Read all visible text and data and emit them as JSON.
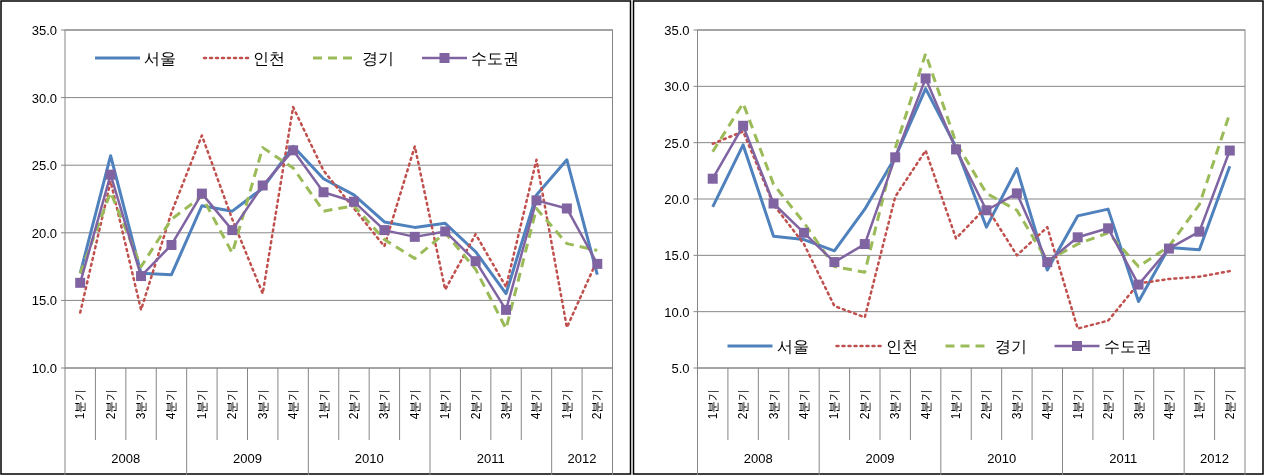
{
  "chart_data": [
    {
      "type": "line",
      "categories": [
        "1분기",
        "2분기",
        "3분기",
        "4분기",
        "1분기",
        "2분기",
        "3분기",
        "4분기",
        "1분기",
        "2분기",
        "3분기",
        "4분기",
        "1분기",
        "2분기",
        "3분기",
        "4분기",
        "1분기",
        "2분기"
      ],
      "annotations": [
        "2008",
        "2009",
        "2010",
        "2011",
        "2012"
      ],
      "ylim": [
        10,
        35
      ],
      "yticks": [
        {
          "value": 10,
          "label": "10.0"
        },
        {
          "value": 15,
          "label": "15.0"
        },
        {
          "value": 20,
          "label": "20.0"
        },
        {
          "value": 25,
          "label": "25.0"
        },
        {
          "value": 30,
          "label": "30.0"
        },
        {
          "value": 35,
          "label": "35.0"
        }
      ],
      "grid": "y",
      "legend": "top left",
      "series": [
        {
          "name": "서울",
          "color": "#4f81bd",
          "line_style": "solid",
          "marker": "none",
          "values": [
            17.0,
            25.7,
            17.0,
            16.9,
            22.0,
            21.6,
            23.3,
            26.4,
            24.0,
            22.8,
            20.8,
            20.4,
            20.7,
            18.6,
            15.5,
            22.8,
            25.4,
            16.9
          ]
        },
        {
          "name": "인천",
          "color": "#c0504d",
          "line_style": "dotted",
          "marker": "none",
          "values": [
            14.1,
            23.8,
            14.3,
            21.5,
            27.2,
            21.0,
            15.5,
            29.3,
            24.6,
            21.8,
            19.0,
            26.4,
            15.8,
            19.9,
            16.0,
            25.4,
            13.0,
            18.0
          ]
        },
        {
          "name": "경기",
          "color": "#9bbb59",
          "line_style": "dashed",
          "marker": "none",
          "values": [
            17.0,
            23.0,
            17.5,
            21.0,
            22.7,
            18.5,
            26.3,
            24.8,
            21.6,
            22.0,
            19.5,
            18.1,
            20.0,
            17.3,
            12.9,
            21.8,
            19.2,
            18.7
          ]
        },
        {
          "name": "수도권",
          "color": "#8064a2",
          "line_style": "solid",
          "marker": "square",
          "values": [
            16.3,
            24.3,
            16.8,
            19.1,
            22.9,
            20.2,
            23.5,
            26.1,
            23.0,
            22.3,
            20.2,
            19.7,
            20.1,
            17.9,
            14.3,
            22.4,
            21.8,
            17.7
          ]
        }
      ]
    },
    {
      "type": "line",
      "categories": [
        "1분기",
        "2분기",
        "3분기",
        "4분기",
        "1분기",
        "2분기",
        "3분기",
        "4분기",
        "1분기",
        "2분기",
        "3분기",
        "4분기",
        "1분기",
        "2분기",
        "3분기",
        "4분기",
        "1분기",
        "2분기"
      ],
      "annotations": [
        "2008",
        "2009",
        "2010",
        "2011",
        "2012"
      ],
      "ylim": [
        5,
        35
      ],
      "yticks": [
        {
          "value": 5,
          "label": "5.0"
        },
        {
          "value": 10,
          "label": "10.0"
        },
        {
          "value": 15,
          "label": "15.0"
        },
        {
          "value": 20,
          "label": "20.0"
        },
        {
          "value": 25,
          "label": "25.0"
        },
        {
          "value": 30,
          "label": "30.0"
        },
        {
          "value": 35,
          "label": "35.0"
        }
      ],
      "grid": "y",
      "legend": "bottom left",
      "series": [
        {
          "name": "서울",
          "color": "#4f81bd",
          "line_style": "solid",
          "marker": "none",
          "values": [
            19.3,
            24.8,
            16.7,
            16.4,
            15.4,
            19.1,
            23.7,
            29.8,
            24.6,
            17.5,
            22.7,
            13.7,
            18.5,
            19.1,
            10.9,
            15.7,
            15.5,
            22.9
          ]
        },
        {
          "name": "인천",
          "color": "#c0504d",
          "line_style": "dotted",
          "marker": "none",
          "values": [
            24.9,
            26.0,
            19.5,
            16.0,
            10.5,
            9.5,
            20.2,
            24.3,
            16.5,
            19.3,
            15.0,
            17.5,
            8.5,
            9.2,
            12.5,
            12.9,
            13.1,
            13.6
          ]
        },
        {
          "name": "경기",
          "color": "#9bbb59",
          "line_style": "dashed",
          "marker": "none",
          "values": [
            24.2,
            28.5,
            21.3,
            17.9,
            14.0,
            13.5,
            24.5,
            32.9,
            25.0,
            20.5,
            19.0,
            14.5,
            16.0,
            17.0,
            14.0,
            15.8,
            19.5,
            27.6
          ]
        },
        {
          "name": "수도권",
          "color": "#8064a2",
          "line_style": "solid",
          "marker": "square",
          "values": [
            21.8,
            26.5,
            19.6,
            17.0,
            14.4,
            16.0,
            23.7,
            30.7,
            24.4,
            19.0,
            20.5,
            14.4,
            16.6,
            17.4,
            12.4,
            15.6,
            17.1,
            24.3
          ]
        }
      ]
    }
  ]
}
